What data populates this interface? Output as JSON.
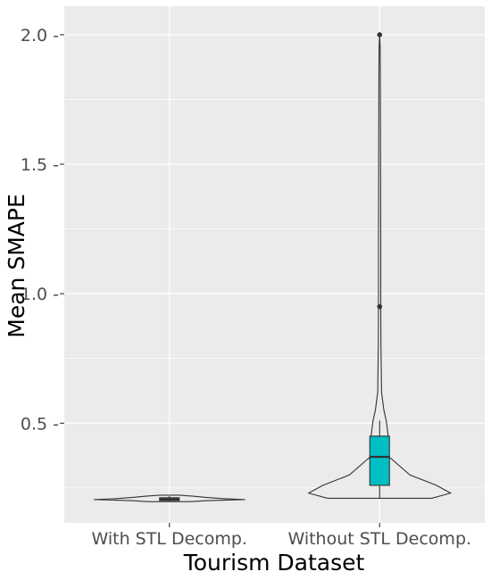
{
  "chart_data": {
    "type": "violin",
    "xlabel": "Tourism Dataset",
    "ylabel": "Mean SMAPE",
    "categories": [
      "With STL Decomp.",
      "Without STL Decomp."
    ],
    "ylim": [
      0.115,
      2.11
    ],
    "yticks": [
      0.5,
      1.0,
      1.5,
      2.0
    ],
    "ytick_labels": [
      "0.5 -",
      "1.0 -",
      "1.5 -",
      "2.0 -"
    ],
    "grid": true,
    "colors": {
      "panel": "#ebebeb",
      "grid": "#ffffff",
      "box_with": "#555555",
      "box_without": "#00bfc4",
      "outline": "#333333"
    },
    "series": [
      {
        "category": "With STL Decomp.",
        "box": {
          "q1": 0.202,
          "median": 0.207,
          "q3": 0.212
        },
        "whiskers": [
          0.197,
          0.218
        ],
        "violin": [
          [
            0.197,
            0.22
          ],
          [
            0.201,
            0.4
          ],
          [
            0.205,
            0.8
          ],
          [
            0.209,
            0.55
          ],
          [
            0.213,
            0.4
          ],
          [
            0.218,
            0.25
          ],
          [
            0.222,
            0.1
          ]
        ],
        "outliers": []
      },
      {
        "category": "Without STL Decomp.",
        "box": {
          "q1": 0.26,
          "median": 0.37,
          "q3": 0.45
        },
        "whiskers": [
          0.21,
          0.51
        ],
        "violin": [
          [
            0.21,
            0.55
          ],
          [
            0.23,
            0.75
          ],
          [
            0.26,
            0.6
          ],
          [
            0.3,
            0.32
          ],
          [
            0.37,
            0.1
          ],
          [
            0.45,
            0.09
          ],
          [
            0.51,
            0.07
          ],
          [
            0.55,
            0.045
          ],
          [
            0.62,
            0.02
          ],
          [
            0.8,
            0.014
          ],
          [
            0.95,
            0.012
          ],
          [
            1.2,
            0.012
          ],
          [
            1.5,
            0.01
          ],
          [
            1.8,
            0.008
          ],
          [
            1.95,
            0.006
          ],
          [
            2.0,
            0.0
          ]
        ],
        "outliers": [
          0.95,
          2.0
        ]
      }
    ]
  }
}
